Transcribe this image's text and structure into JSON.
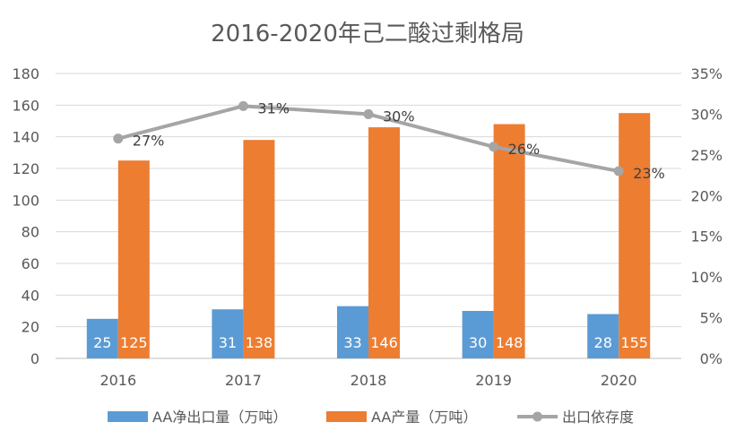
{
  "chart_data": {
    "type": "bar",
    "title": "2016-2020年己二酸过剩格局",
    "categories": [
      "2016",
      "2017",
      "2018",
      "2019",
      "2020"
    ],
    "y_left": {
      "min": 0,
      "max": 180,
      "ticks": [
        0,
        20,
        40,
        60,
        80,
        100,
        120,
        140,
        160,
        180
      ]
    },
    "y_right": {
      "min": 0,
      "max": 35,
      "ticks": [
        "0%",
        "5%",
        "10%",
        "15%",
        "20%",
        "25%",
        "30%",
        "35%"
      ]
    },
    "series": [
      {
        "name": "AA净出口量（万吨）",
        "type": "bar",
        "axis": "left",
        "color": "#5B9BD5",
        "values": [
          25,
          31,
          33,
          30,
          28
        ],
        "labels": [
          "25",
          "31",
          "33",
          "30",
          "28"
        ]
      },
      {
        "name": "AA产量（万吨）",
        "type": "bar",
        "axis": "left",
        "color": "#ED7D31",
        "values": [
          125,
          138,
          146,
          148,
          155
        ],
        "labels": [
          "125",
          "138",
          "146",
          "148",
          "155"
        ]
      },
      {
        "name": "出口依存度",
        "type": "line",
        "axis": "right",
        "color": "#A5A5A5",
        "values": [
          27,
          31,
          30,
          26,
          23
        ],
        "labels": [
          "27%",
          "31%",
          "30%",
          "26%",
          "23%"
        ]
      }
    ],
    "legend_position": "bottom",
    "grid": true
  }
}
